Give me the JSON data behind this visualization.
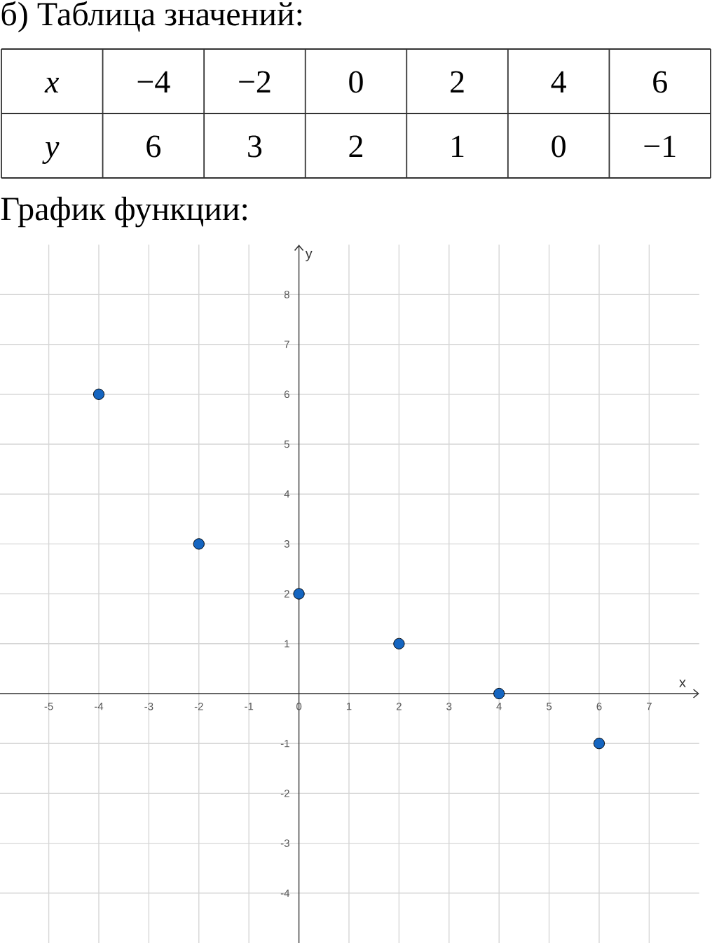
{
  "chart_data": {
    "type": "scatter",
    "title": "б) Таблица значений:",
    "subtitle": "График функции:",
    "xlabel": "x",
    "ylabel": "y",
    "x": [
      -4,
      -2,
      0,
      2,
      4,
      6
    ],
    "values": [
      6,
      3,
      2,
      1,
      0,
      -1
    ],
    "color": "#1565c0",
    "marker": "circle",
    "annotations": [
      "x",
      "−4",
      "−2",
      "0",
      "2",
      "4",
      "6",
      "y",
      "6",
      "3",
      "2",
      "1",
      "0",
      "−1"
    ],
    "xlim": [
      -6,
      8
    ],
    "ylim": [
      -5,
      9
    ],
    "xticks": [
      -5,
      -4,
      -3,
      -2,
      -1,
      0,
      1,
      2,
      3,
      4,
      5,
      6,
      7
    ],
    "yticks": [
      -4,
      -3,
      -2,
      -1,
      1,
      2,
      3,
      4,
      5,
      6,
      7,
      8
    ],
    "grid": true
  }
}
